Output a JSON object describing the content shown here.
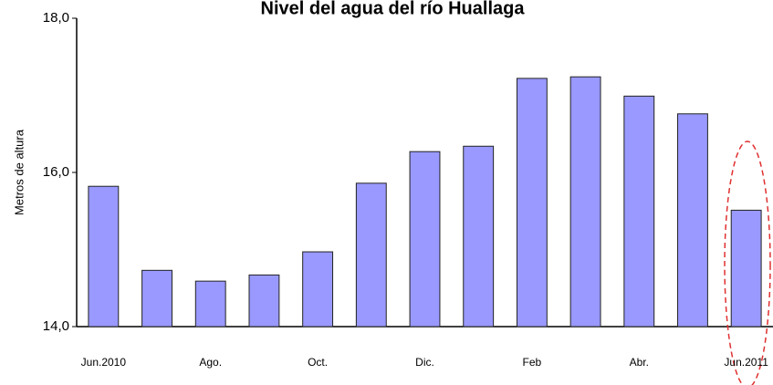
{
  "chart_data": {
    "type": "bar",
    "title": "Nivel del agua del río Huallaga",
    "y_label": "Metros de altura",
    "categories": [
      "Jun.2010",
      null,
      "Ago.",
      null,
      "Oct.",
      null,
      "Dic.",
      null,
      "Feb",
      null,
      "Abr.",
      null,
      "Jun.2011"
    ],
    "values": [
      15.82,
      14.73,
      14.59,
      14.67,
      14.97,
      15.86,
      16.27,
      16.34,
      17.22,
      17.24,
      16.99,
      16.76,
      15.51
    ],
    "color": "#9999ff",
    "ylim": [
      14,
      18
    ],
    "yticks": [
      {
        "value": 14,
        "label": "14,0"
      },
      {
        "value": 16,
        "label": "16,0"
      },
      {
        "value": 18,
        "label": "18,0"
      }
    ],
    "grid": false
  }
}
